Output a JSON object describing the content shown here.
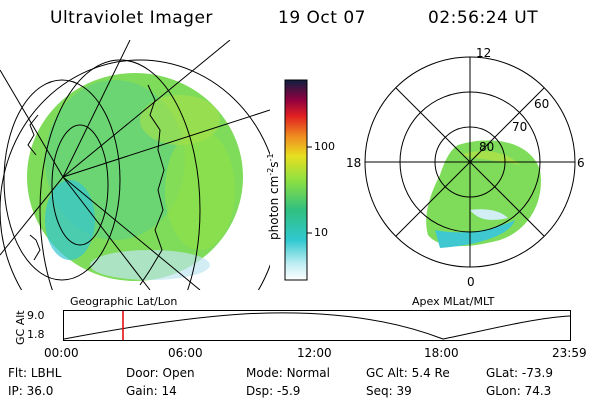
{
  "header": {
    "title": "Ultraviolet Imager",
    "date": "19 Oct 07",
    "time": "02:56:24 UT"
  },
  "colorbar": {
    "label": "photon cm",
    "label_sup1": "-2",
    "label_mid": "s",
    "label_sup2": "-1",
    "ticks": [
      "100",
      "10"
    ]
  },
  "left_panel": {
    "caption": "Geographic Lat/Lon"
  },
  "right_panel": {
    "caption": "Apex MLat/MLT",
    "mlt_labels": [
      "12",
      "18",
      "6",
      "0"
    ],
    "lat_labels": [
      "60",
      "70",
      "80"
    ]
  },
  "altitude_plot": {
    "ylabel": "GC Alt",
    "y_ticks": [
      "9.0",
      "1.8"
    ],
    "x_ticks": [
      "00:00",
      "06:00",
      "12:00",
      "18:00",
      "23:59"
    ]
  },
  "status": {
    "row1": [
      {
        "label": "Flt:",
        "value": "LBHL"
      },
      {
        "label": "Door:",
        "value": "Open"
      },
      {
        "label": "Mode:",
        "value": "Normal"
      },
      {
        "label": "GC Alt:",
        "value": "5.4 Re"
      },
      {
        "label": "GLat:",
        "value": "-73.9"
      }
    ],
    "row2": [
      {
        "label": "IP:",
        "value": "36.0"
      },
      {
        "label": "Gain:",
        "value": "14"
      },
      {
        "label": "Dsp:",
        "value": "-5.9"
      },
      {
        "label": "Seq:",
        "value": "39"
      },
      {
        "label": "GLon:",
        "value": "74.3"
      }
    ]
  }
}
